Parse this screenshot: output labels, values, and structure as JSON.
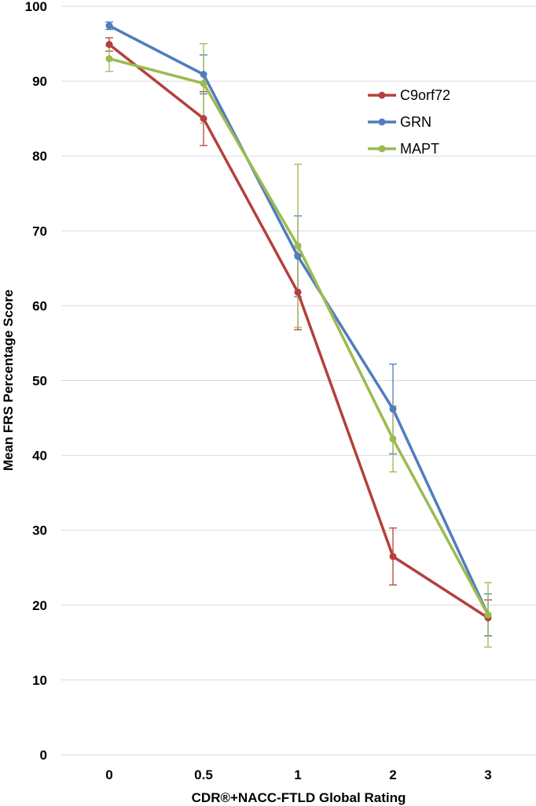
{
  "chart_data": {
    "type": "line",
    "title": "",
    "xlabel": "CDR®+NACC-FTLD Global Rating",
    "ylabel": "Mean FRS Percentage Score",
    "categories": [
      "0",
      "0.5",
      "1",
      "2",
      "3"
    ],
    "ylim": [
      0,
      100
    ],
    "yticks": [
      0,
      10,
      20,
      30,
      40,
      50,
      60,
      70,
      80,
      90,
      100
    ],
    "grid": true,
    "legend_position": "top-right",
    "series": [
      {
        "name": "C9orf72",
        "color": "#b5403b",
        "values": [
          94.9,
          85.0,
          61.8,
          26.5,
          18.3
        ],
        "error_upper": [
          95.8,
          88.6,
          66.8,
          30.3,
          20.7
        ],
        "error_lower": [
          94.0,
          81.4,
          56.8,
          22.7,
          15.9
        ]
      },
      {
        "name": "GRN",
        "color": "#4f7dbd",
        "values": [
          97.4,
          90.9,
          66.6,
          46.2,
          18.7
        ],
        "error_upper": [
          97.9,
          93.5,
          72.0,
          52.2,
          21.5
        ],
        "error_lower": [
          96.9,
          88.3,
          61.2,
          40.2,
          15.9
        ]
      },
      {
        "name": "MAPT",
        "color": "#9bbb50",
        "values": [
          93.0,
          89.7,
          68.0,
          42.2,
          18.7
        ],
        "error_upper": [
          94.7,
          95.0,
          78.9,
          46.6,
          23.0
        ],
        "error_lower": [
          91.3,
          84.4,
          57.1,
          37.8,
          14.4
        ]
      }
    ]
  }
}
